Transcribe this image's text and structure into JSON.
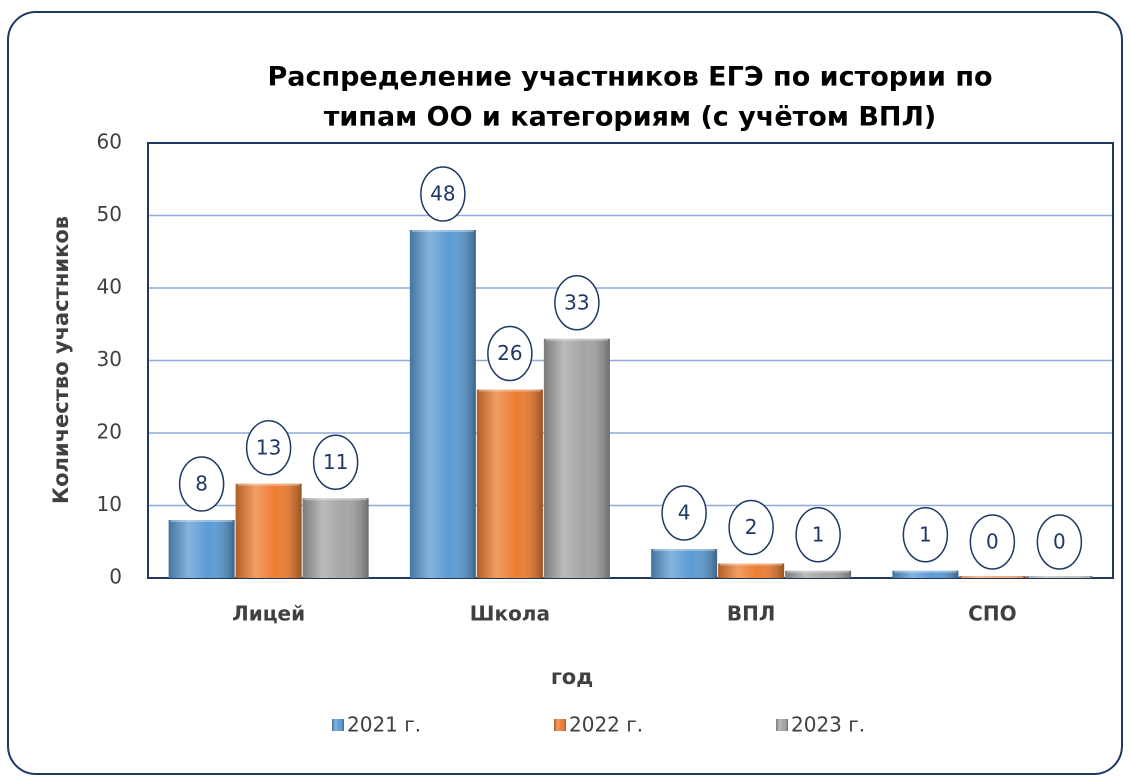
{
  "chart_data": {
    "type": "bar",
    "title": [
      "Распределение участников ЕГЭ по истории по",
      "типам ОО и категориям (с учётом ВПЛ)"
    ],
    "x_label": "год",
    "y_label": "Количество участников",
    "categories": [
      "Лицей",
      "Школа",
      "ВПЛ",
      "СПО"
    ],
    "series": [
      {
        "name": "2021 г.",
        "color": "#5b9bd5",
        "values": [
          8,
          48,
          4,
          1
        ]
      },
      {
        "name": "2022 г.",
        "color": "#ed7d31",
        "values": [
          13,
          26,
          2,
          0
        ]
      },
      {
        "name": "2023 г.",
        "color": "#a5a5a5",
        "values": [
          11,
          33,
          1,
          0
        ]
      }
    ],
    "ylim": [
      0,
      60
    ],
    "yticks": [
      0,
      10,
      20,
      30,
      40,
      50,
      60
    ],
    "grid": true,
    "legend": "bottom"
  }
}
